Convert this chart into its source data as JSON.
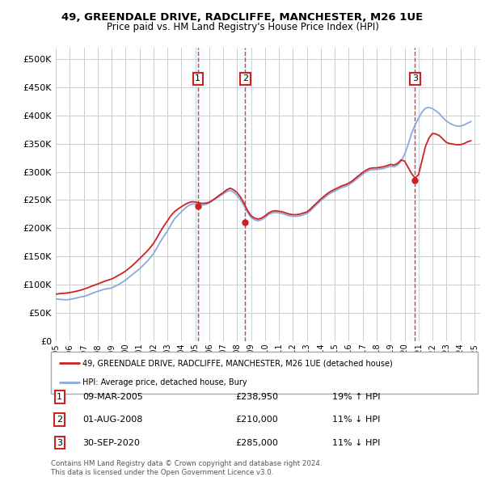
{
  "title": "49, GREENDALE DRIVE, RADCLIFFE, MANCHESTER, M26 1UE",
  "subtitle": "Price paid vs. HM Land Registry's House Price Index (HPI)",
  "hpi_color": "#88aadd",
  "price_color": "#cc2222",
  "dot_color": "#cc2222",
  "shade_color": "#ddeeff",
  "legend_line1": "49, GREENDALE DRIVE, RADCLIFFE, MANCHESTER, M26 1UE (detached house)",
  "legend_line2": "HPI: Average price, detached house, Bury",
  "footer1": "Contains HM Land Registry data © Crown copyright and database right 2024.",
  "footer2": "This data is licensed under the Open Government Licence v3.0.",
  "transactions": [
    {
      "num": 1,
      "date_str": "2005-03-09",
      "price": 238950,
      "pct": "19%",
      "dir": "↑",
      "label": "09-MAR-2005",
      "price_label": "£238,950"
    },
    {
      "num": 2,
      "date_str": "2008-08-01",
      "price": 210000,
      "pct": "11%",
      "dir": "↓",
      "label": "01-AUG-2008",
      "price_label": "£210,000"
    },
    {
      "num": 3,
      "date_str": "2020-09-30",
      "price": 285000,
      "pct": "11%",
      "dir": "↓",
      "label": "30-SEP-2020",
      "price_label": "£285,000"
    }
  ],
  "ylim": [
    0,
    520000
  ],
  "yticks": [
    0,
    50000,
    100000,
    150000,
    200000,
    250000,
    300000,
    350000,
    400000,
    450000,
    500000
  ],
  "xlim_start": "1995-01-01",
  "xlim_end": "2025-06-01",
  "hpi_data": [
    [
      "1995-01-01",
      75000
    ],
    [
      "1995-04-01",
      74000
    ],
    [
      "1995-07-01",
      73500
    ],
    [
      "1995-10-01",
      73000
    ],
    [
      "1996-01-01",
      74000
    ],
    [
      "1996-04-01",
      75000
    ],
    [
      "1996-07-01",
      76500
    ],
    [
      "1996-10-01",
      78000
    ],
    [
      "1997-01-01",
      79000
    ],
    [
      "1997-04-01",
      81000
    ],
    [
      "1997-07-01",
      83500
    ],
    [
      "1997-10-01",
      86000
    ],
    [
      "1998-01-01",
      88000
    ],
    [
      "1998-04-01",
      90000
    ],
    [
      "1998-07-01",
      92000
    ],
    [
      "1998-10-01",
      93000
    ],
    [
      "1999-01-01",
      94000
    ],
    [
      "1999-04-01",
      97000
    ],
    [
      "1999-07-01",
      100000
    ],
    [
      "1999-10-01",
      104000
    ],
    [
      "2000-01-01",
      108000
    ],
    [
      "2000-04-01",
      113000
    ],
    [
      "2000-07-01",
      118000
    ],
    [
      "2000-10-01",
      123000
    ],
    [
      "2001-01-01",
      128000
    ],
    [
      "2001-04-01",
      134000
    ],
    [
      "2001-07-01",
      140000
    ],
    [
      "2001-10-01",
      147000
    ],
    [
      "2002-01-01",
      155000
    ],
    [
      "2002-04-01",
      165000
    ],
    [
      "2002-07-01",
      176000
    ],
    [
      "2002-10-01",
      186000
    ],
    [
      "2003-01-01",
      195000
    ],
    [
      "2003-04-01",
      206000
    ],
    [
      "2003-07-01",
      216000
    ],
    [
      "2003-10-01",
      223000
    ],
    [
      "2004-01-01",
      229000
    ],
    [
      "2004-04-01",
      235000
    ],
    [
      "2004-07-01",
      240000
    ],
    [
      "2004-10-01",
      243000
    ],
    [
      "2005-01-01",
      243000
    ],
    [
      "2005-04-01",
      242000
    ],
    [
      "2005-07-01",
      241000
    ],
    [
      "2005-10-01",
      242000
    ],
    [
      "2006-01-01",
      245000
    ],
    [
      "2006-04-01",
      249000
    ],
    [
      "2006-07-01",
      253000
    ],
    [
      "2006-10-01",
      257000
    ],
    [
      "2007-01-01",
      261000
    ],
    [
      "2007-04-01",
      265000
    ],
    [
      "2007-07-01",
      267000
    ],
    [
      "2007-10-01",
      264000
    ],
    [
      "2008-01-01",
      258000
    ],
    [
      "2008-04-01",
      250000
    ],
    [
      "2008-07-01",
      240000
    ],
    [
      "2008-10-01",
      228000
    ],
    [
      "2009-01-01",
      219000
    ],
    [
      "2009-04-01",
      215000
    ],
    [
      "2009-07-01",
      213000
    ],
    [
      "2009-10-01",
      215000
    ],
    [
      "2010-01-01",
      219000
    ],
    [
      "2010-04-01",
      224000
    ],
    [
      "2010-07-01",
      227000
    ],
    [
      "2010-10-01",
      228000
    ],
    [
      "2011-01-01",
      227000
    ],
    [
      "2011-04-01",
      226000
    ],
    [
      "2011-07-01",
      224000
    ],
    [
      "2011-10-01",
      222000
    ],
    [
      "2012-01-01",
      221000
    ],
    [
      "2012-04-01",
      221000
    ],
    [
      "2012-07-01",
      222000
    ],
    [
      "2012-10-01",
      224000
    ],
    [
      "2013-01-01",
      226000
    ],
    [
      "2013-04-01",
      231000
    ],
    [
      "2013-07-01",
      237000
    ],
    [
      "2013-10-01",
      243000
    ],
    [
      "2014-01-01",
      249000
    ],
    [
      "2014-04-01",
      254000
    ],
    [
      "2014-07-01",
      259000
    ],
    [
      "2014-10-01",
      263000
    ],
    [
      "2015-01-01",
      266000
    ],
    [
      "2015-04-01",
      269000
    ],
    [
      "2015-07-01",
      272000
    ],
    [
      "2015-10-01",
      274000
    ],
    [
      "2016-01-01",
      277000
    ],
    [
      "2016-04-01",
      281000
    ],
    [
      "2016-07-01",
      286000
    ],
    [
      "2016-10-01",
      291000
    ],
    [
      "2017-01-01",
      296000
    ],
    [
      "2017-04-01",
      300000
    ],
    [
      "2017-07-01",
      303000
    ],
    [
      "2017-10-01",
      304000
    ],
    [
      "2018-01-01",
      304000
    ],
    [
      "2018-04-01",
      305000
    ],
    [
      "2018-07-01",
      306000
    ],
    [
      "2018-10-01",
      308000
    ],
    [
      "2019-01-01",
      310000
    ],
    [
      "2019-04-01",
      309000
    ],
    [
      "2019-07-01",
      312000
    ],
    [
      "2019-10-01",
      319000
    ],
    [
      "2020-01-01",
      331000
    ],
    [
      "2020-04-01",
      348000
    ],
    [
      "2020-07-01",
      368000
    ],
    [
      "2020-10-01",
      383000
    ],
    [
      "2021-01-01",
      395000
    ],
    [
      "2021-04-01",
      406000
    ],
    [
      "2021-07-01",
      413000
    ],
    [
      "2021-10-01",
      414000
    ],
    [
      "2022-01-01",
      412000
    ],
    [
      "2022-04-01",
      408000
    ],
    [
      "2022-07-01",
      403000
    ],
    [
      "2022-10-01",
      396000
    ],
    [
      "2023-01-01",
      390000
    ],
    [
      "2023-04-01",
      386000
    ],
    [
      "2023-07-01",
      383000
    ],
    [
      "2023-10-01",
      381000
    ],
    [
      "2024-01-01",
      381000
    ],
    [
      "2024-04-01",
      383000
    ],
    [
      "2024-07-01",
      386000
    ],
    [
      "2024-10-01",
      389000
    ]
  ],
  "price_data": [
    [
      "1995-01-01",
      83000
    ],
    [
      "1995-04-01",
      84000
    ],
    [
      "1995-07-01",
      84500
    ],
    [
      "1995-10-01",
      85000
    ],
    [
      "1996-01-01",
      86000
    ],
    [
      "1996-04-01",
      87000
    ],
    [
      "1996-07-01",
      88500
    ],
    [
      "1996-10-01",
      90000
    ],
    [
      "1997-01-01",
      92000
    ],
    [
      "1997-04-01",
      94000
    ],
    [
      "1997-07-01",
      96500
    ],
    [
      "1997-10-01",
      99000
    ],
    [
      "1998-01-01",
      101000
    ],
    [
      "1998-04-01",
      103500
    ],
    [
      "1998-07-01",
      106000
    ],
    [
      "1998-10-01",
      108000
    ],
    [
      "1999-01-01",
      110000
    ],
    [
      "1999-04-01",
      113000
    ],
    [
      "1999-07-01",
      116500
    ],
    [
      "1999-10-01",
      120000
    ],
    [
      "2000-01-01",
      124000
    ],
    [
      "2000-04-01",
      129000
    ],
    [
      "2000-07-01",
      134000
    ],
    [
      "2000-10-01",
      140000
    ],
    [
      "2001-01-01",
      146000
    ],
    [
      "2001-04-01",
      152000
    ],
    [
      "2001-07-01",
      158000
    ],
    [
      "2001-10-01",
      165000
    ],
    [
      "2002-01-01",
      173000
    ],
    [
      "2002-04-01",
      183000
    ],
    [
      "2002-07-01",
      194000
    ],
    [
      "2002-10-01",
      204000
    ],
    [
      "2003-01-01",
      213000
    ],
    [
      "2003-04-01",
      222000
    ],
    [
      "2003-07-01",
      229000
    ],
    [
      "2003-10-01",
      234000
    ],
    [
      "2004-01-01",
      238000
    ],
    [
      "2004-04-01",
      242000
    ],
    [
      "2004-07-01",
      245000
    ],
    [
      "2004-10-01",
      247000
    ],
    [
      "2005-01-01",
      246500
    ],
    [
      "2005-04-01",
      245000
    ],
    [
      "2005-07-01",
      244000
    ],
    [
      "2005-10-01",
      244500
    ],
    [
      "2006-01-01",
      246000
    ],
    [
      "2006-04-01",
      250000
    ],
    [
      "2006-07-01",
      254000
    ],
    [
      "2006-10-01",
      259000
    ],
    [
      "2007-01-01",
      263000
    ],
    [
      "2007-04-01",
      268000
    ],
    [
      "2007-07-01",
      271000
    ],
    [
      "2007-10-01",
      268000
    ],
    [
      "2008-01-01",
      263000
    ],
    [
      "2008-04-01",
      255000
    ],
    [
      "2008-07-01",
      244000
    ],
    [
      "2008-10-01",
      231000
    ],
    [
      "2009-01-01",
      222000
    ],
    [
      "2009-04-01",
      218000
    ],
    [
      "2009-07-01",
      216000
    ],
    [
      "2009-10-01",
      218000
    ],
    [
      "2010-01-01",
      222000
    ],
    [
      "2010-04-01",
      227000
    ],
    [
      "2010-07-01",
      230000
    ],
    [
      "2010-10-01",
      231000
    ],
    [
      "2011-01-01",
      230000
    ],
    [
      "2011-04-01",
      229000
    ],
    [
      "2011-07-01",
      227000
    ],
    [
      "2011-10-01",
      225000
    ],
    [
      "2012-01-01",
      224000
    ],
    [
      "2012-04-01",
      224000
    ],
    [
      "2012-07-01",
      225000
    ],
    [
      "2012-10-01",
      227000
    ],
    [
      "2013-01-01",
      229000
    ],
    [
      "2013-04-01",
      234000
    ],
    [
      "2013-07-01",
      240000
    ],
    [
      "2013-10-01",
      246000
    ],
    [
      "2014-01-01",
      252000
    ],
    [
      "2014-04-01",
      257000
    ],
    [
      "2014-07-01",
      262000
    ],
    [
      "2014-10-01",
      266000
    ],
    [
      "2015-01-01",
      269000
    ],
    [
      "2015-04-01",
      272000
    ],
    [
      "2015-07-01",
      275000
    ],
    [
      "2015-10-01",
      277000
    ],
    [
      "2016-01-01",
      280000
    ],
    [
      "2016-04-01",
      284000
    ],
    [
      "2016-07-01",
      289000
    ],
    [
      "2016-10-01",
      294000
    ],
    [
      "2017-01-01",
      299000
    ],
    [
      "2017-04-01",
      303000
    ],
    [
      "2017-07-01",
      306000
    ],
    [
      "2017-10-01",
      307000
    ],
    [
      "2018-01-01",
      307000
    ],
    [
      "2018-04-01",
      308000
    ],
    [
      "2018-07-01",
      309000
    ],
    [
      "2018-10-01",
      311000
    ],
    [
      "2019-01-01",
      313000
    ],
    [
      "2019-04-01",
      312000
    ],
    [
      "2019-07-01",
      315000
    ],
    [
      "2019-10-01",
      321000
    ],
    [
      "2020-01-01",
      319000
    ],
    [
      "2020-04-01",
      308000
    ],
    [
      "2020-07-01",
      297000
    ],
    [
      "2020-10-01",
      289000
    ],
    [
      "2021-01-01",
      295000
    ],
    [
      "2021-04-01",
      320000
    ],
    [
      "2021-07-01",
      345000
    ],
    [
      "2021-10-01",
      360000
    ],
    [
      "2022-01-01",
      368000
    ],
    [
      "2022-04-01",
      367000
    ],
    [
      "2022-07-01",
      364000
    ],
    [
      "2022-10-01",
      358000
    ],
    [
      "2023-01-01",
      352000
    ],
    [
      "2023-04-01",
      350000
    ],
    [
      "2023-07-01",
      349000
    ],
    [
      "2023-10-01",
      348000
    ],
    [
      "2024-01-01",
      348000
    ],
    [
      "2024-04-01",
      350000
    ],
    [
      "2024-07-01",
      353000
    ],
    [
      "2024-10-01",
      355000
    ]
  ]
}
